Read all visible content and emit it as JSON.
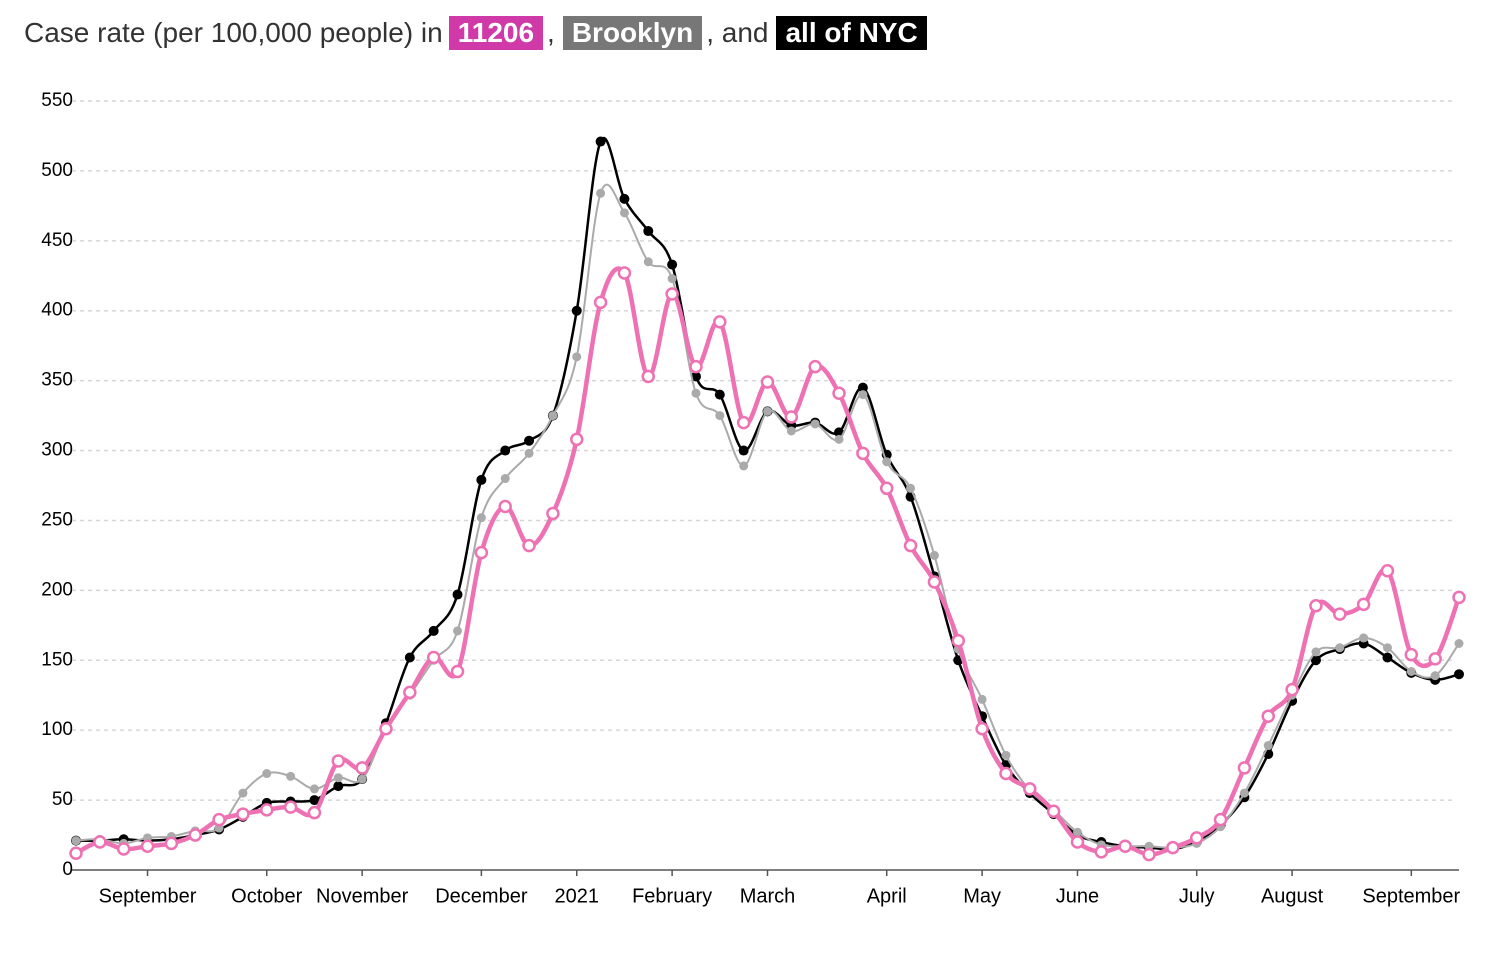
{
  "chart_data": {
    "type": "line",
    "title_parts": [
      "Case rate (per 100,000 people) in",
      ",",
      ", and"
    ],
    "categories": [
      null,
      null,
      null,
      "September",
      null,
      null,
      null,
      null,
      "October",
      null,
      null,
      null,
      "November",
      null,
      null,
      null,
      null,
      "December",
      null,
      null,
      null,
      "2021",
      null,
      null,
      null,
      "February",
      null,
      null,
      null,
      "March",
      null,
      null,
      null,
      null,
      "April",
      null,
      null,
      null,
      "May",
      null,
      null,
      null,
      "June",
      null,
      null,
      null,
      null,
      "July",
      null,
      null,
      null,
      "August",
      null,
      null,
      null,
      null,
      "September",
      null,
      null
    ],
    "series": [
      {
        "name": "all of NYC",
        "color": "#000000",
        "title_bg": "#000000",
        "marker": "filled",
        "values": [
          21,
          21,
          22,
          21,
          22,
          25,
          29,
          38,
          48,
          49,
          50,
          60,
          65,
          105,
          152,
          171,
          197,
          279,
          300,
          307,
          325,
          400,
          521,
          480,
          457,
          433,
          353,
          340,
          300,
          328,
          318,
          320,
          313,
          345,
          297,
          267,
          210,
          150,
          110,
          75,
          55,
          40,
          25,
          20,
          17,
          16,
          15,
          20,
          32,
          52,
          83,
          121,
          150,
          158,
          162,
          152,
          141,
          136,
          140
        ]
      },
      {
        "name": "Brooklyn",
        "color": "#aaaaaa",
        "title_bg": "#777777",
        "marker": "filled",
        "values": [
          21,
          22,
          19,
          23,
          24,
          28,
          30,
          55,
          69,
          67,
          58,
          66,
          65,
          101,
          125,
          150,
          171,
          252,
          280,
          298,
          325,
          367,
          484,
          470,
          435,
          423,
          341,
          325,
          289,
          328,
          314,
          319,
          308,
          340,
          292,
          273,
          225,
          158,
          122,
          82,
          57,
          43,
          27,
          18,
          17,
          17,
          16,
          19,
          31,
          55,
          89,
          125,
          156,
          159,
          166,
          159,
          142,
          139,
          162
        ]
      },
      {
        "name": "11206",
        "color": "#ee72b3",
        "title_bg": "#cf3aa8",
        "marker": "open",
        "values": [
          12,
          20,
          15,
          17,
          19,
          25,
          36,
          40,
          43,
          45,
          41,
          78,
          73,
          101,
          127,
          152,
          142,
          227,
          260,
          232,
          255,
          308,
          406,
          427,
          353,
          412,
          360,
          392,
          320,
          349,
          324,
          360,
          341,
          298,
          273,
          232,
          206,
          164,
          101,
          69,
          58,
          42,
          20,
          13,
          17,
          11,
          16,
          23,
          36,
          73,
          110,
          129,
          189,
          183,
          190,
          214,
          154,
          151,
          195
        ]
      }
    ],
    "ylim": [
      0,
      550
    ],
    "yticks": [
      0,
      50,
      100,
      150,
      200,
      250,
      300,
      350,
      400,
      450,
      500,
      550
    ],
    "grid": true
  }
}
